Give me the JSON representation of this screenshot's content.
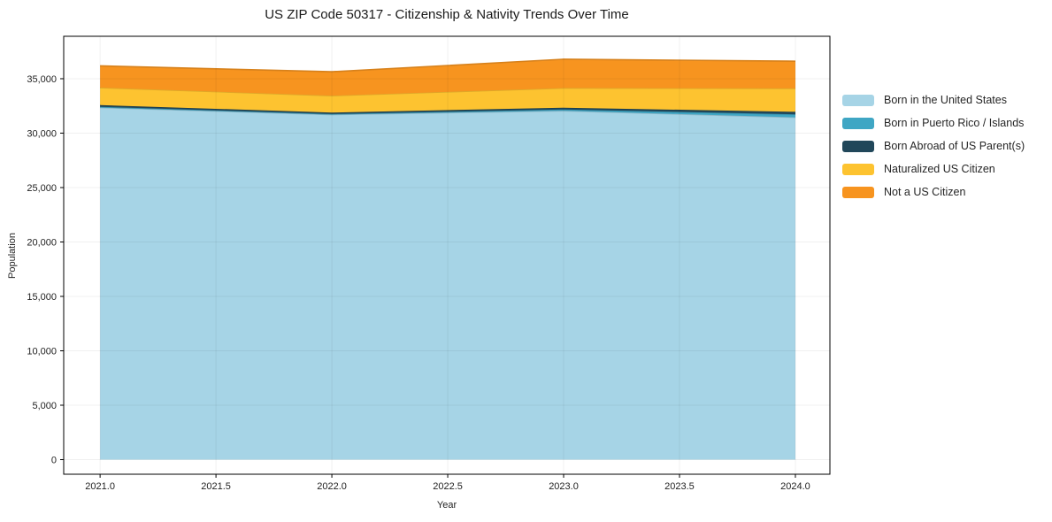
{
  "title": "US ZIP Code 50317 - Citizenship & Nativity Trends Over Time",
  "chart_data": {
    "type": "area",
    "stacked": true,
    "title": "US ZIP Code 50317 - Citizenship & Nativity Trends Over Time",
    "xlabel": "Year",
    "ylabel": "Population",
    "x": [
      2021,
      2022,
      2023,
      2024
    ],
    "series": [
      {
        "name": "Born in the United States",
        "color": "#a6d4e6",
        "values": [
          32350,
          31700,
          32050,
          31450
        ]
      },
      {
        "name": "Born in Puerto Rico / Islands",
        "color": "#3fa6c4",
        "values": [
          70,
          60,
          120,
          280
        ]
      },
      {
        "name": "Born Abroad of US Parent(s)",
        "color": "#21475a",
        "values": [
          160,
          130,
          170,
          230
        ]
      },
      {
        "name": "Naturalized US Citizen",
        "color": "#fdc330",
        "values": [
          1600,
          1550,
          1800,
          2150
        ]
      },
      {
        "name": "Not a US Citizen",
        "color": "#f7941f",
        "values": [
          2000,
          2200,
          2650,
          2500
        ]
      }
    ],
    "totals": [
      36180,
      35640,
      36790,
      36610
    ],
    "x_ticks": [
      {
        "value": 2021.0,
        "label": "2021.0"
      },
      {
        "value": 2021.5,
        "label": "2021.5"
      },
      {
        "value": 2022.0,
        "label": "2022.0"
      },
      {
        "value": 2022.5,
        "label": "2022.5"
      },
      {
        "value": 2023.0,
        "label": "2023.0"
      },
      {
        "value": 2023.5,
        "label": "2023.5"
      },
      {
        "value": 2024.0,
        "label": "2024.0"
      }
    ],
    "y_ticks": [
      {
        "value": 0,
        "label": "0"
      },
      {
        "value": 5000,
        "label": "5,000"
      },
      {
        "value": 10000,
        "label": "10,000"
      },
      {
        "value": 15000,
        "label": "15,000"
      },
      {
        "value": 20000,
        "label": "20,000"
      },
      {
        "value": 25000,
        "label": "25,000"
      },
      {
        "value": 30000,
        "label": "30,000"
      },
      {
        "value": 35000,
        "label": "35,000"
      }
    ],
    "xlim": [
      2020.843,
      2024.149
    ],
    "ylim": [
      -1340,
      38900
    ],
    "grid": true,
    "grid_color": "#e6e6e6",
    "frame_color": "#000000",
    "legend_position": "right"
  }
}
